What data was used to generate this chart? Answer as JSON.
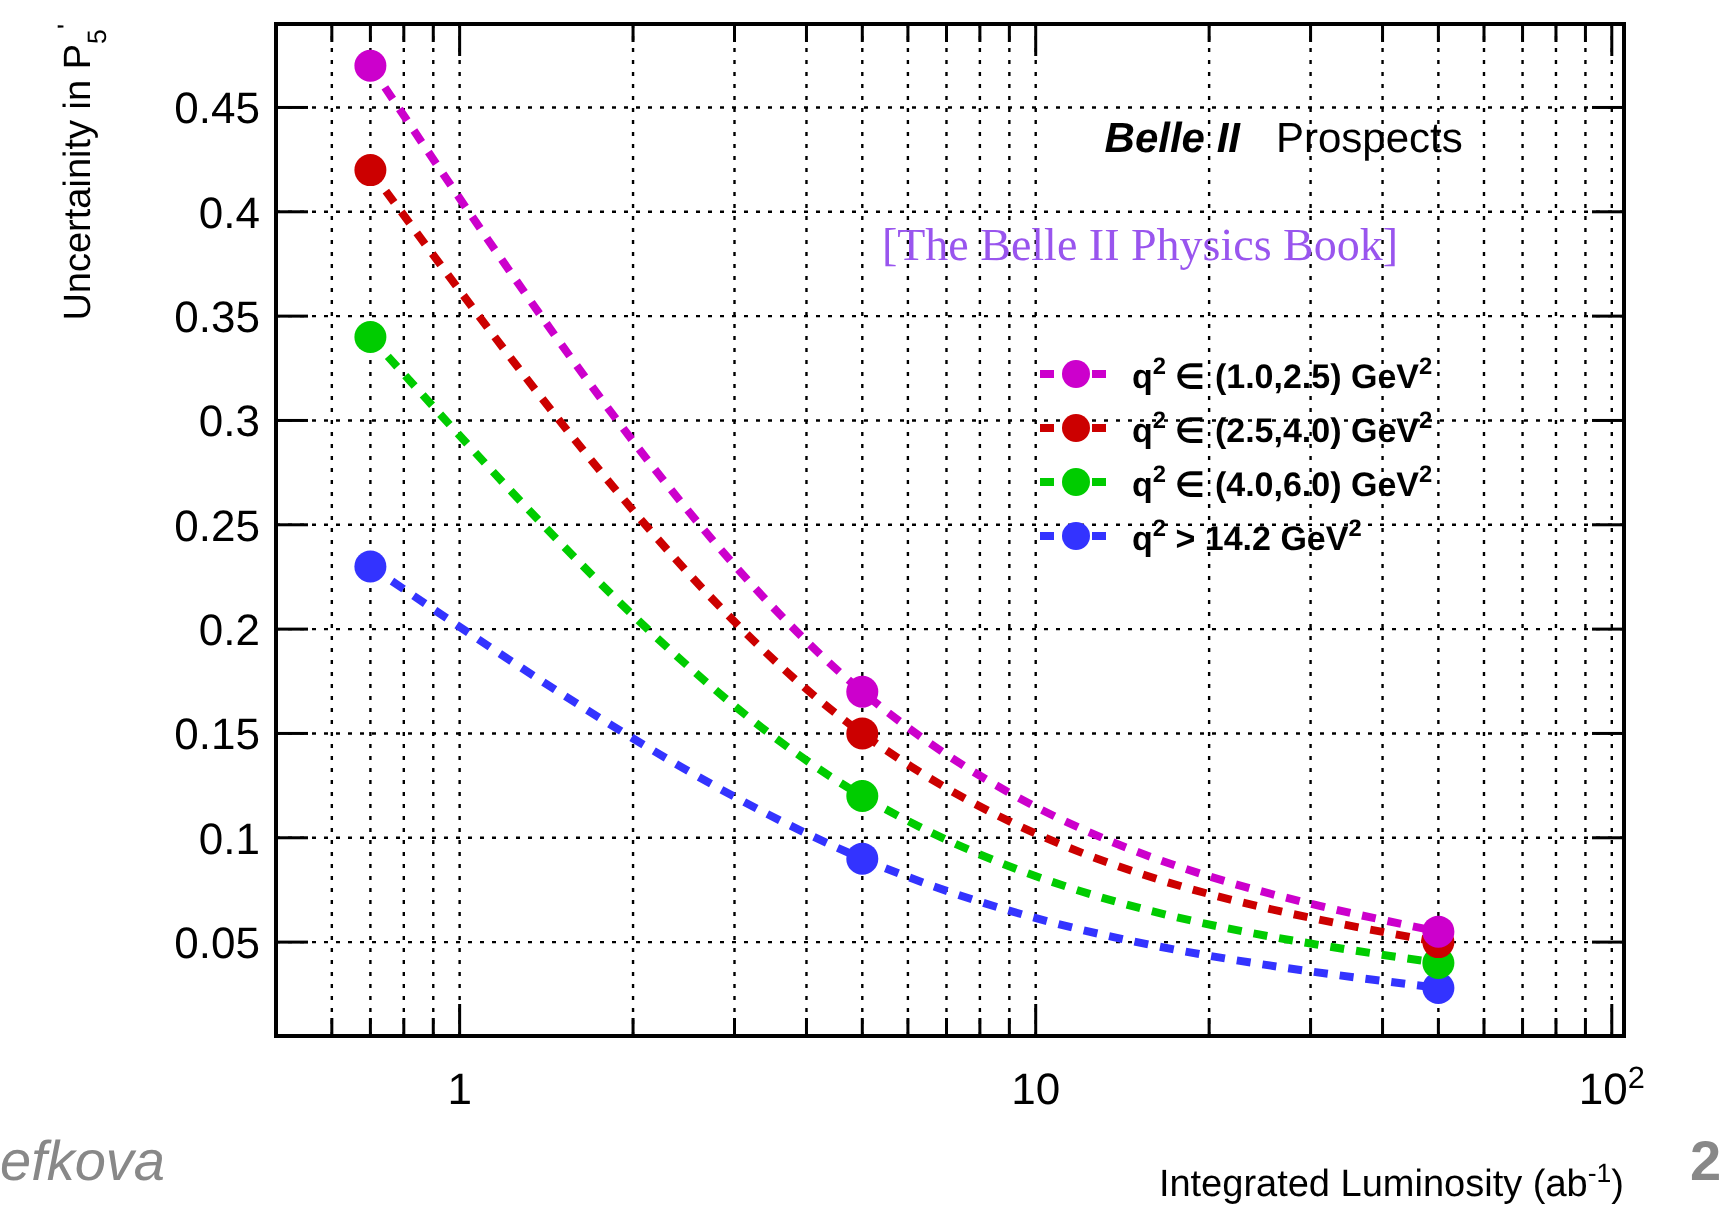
{
  "chart_data": {
    "type": "line",
    "xlabel": "Integrated Luminosity (ab$^{-1}$)",
    "ylabel": "Uncertainity in P$_{5}$$^{'}$",
    "x": [
      0.7,
      5,
      50
    ],
    "series": [
      {
        "name": "q$^{2}$ ∈ (1.0,2.5) GeV$^{2}$",
        "color": "#cc00cc",
        "values": [
          0.47,
          0.17,
          0.055
        ]
      },
      {
        "name": "q$^{2}$ ∈ (2.5,4.0) GeV$^{2}$",
        "color": "#cc0000",
        "values": [
          0.42,
          0.15,
          0.05
        ]
      },
      {
        "name": "q$^{2}$ ∈ (4.0,6.0) GeV$^{2}$",
        "color": "#00cc00",
        "values": [
          0.34,
          0.12,
          0.04
        ]
      },
      {
        "name": "q$^{2}$ > 14.2 GeV$^{2}$",
        "color": "#3333ff",
        "values": [
          0.23,
          0.09,
          0.028
        ]
      }
    ],
    "log": "x",
    "xlim": [
      0.48,
      105
    ],
    "xticks": [
      {
        "value": 0.6,
        "label": null
      },
      {
        "value": 0.7,
        "label": null
      },
      {
        "value": 0.8,
        "label": null
      },
      {
        "value": 0.9,
        "label": null
      },
      1,
      {
        "value": 2,
        "label": null
      },
      {
        "value": 3,
        "label": null
      },
      {
        "value": 4,
        "label": null
      },
      {
        "value": 5,
        "label": null
      },
      {
        "value": 6,
        "label": null
      },
      {
        "value": 7,
        "label": null
      },
      {
        "value": 8,
        "label": null
      },
      {
        "value": 9,
        "label": null
      },
      10,
      {
        "value": 20,
        "label": null
      },
      {
        "value": 30,
        "label": null
      },
      {
        "value": 40,
        "label": null
      },
      {
        "value": 50,
        "label": null
      },
      {
        "value": 60,
        "label": null
      },
      {
        "value": 70,
        "label": null
      },
      {
        "value": 80,
        "label": null
      },
      {
        "value": 90,
        "label": null
      },
      {
        "value": 100,
        "label": "10$^{2}$"
      }
    ],
    "ylim": [
      0.005,
      0.49
    ],
    "yticks": [
      0.05,
      0.1,
      0.15,
      0.2,
      0.25,
      0.3,
      0.35,
      0.4,
      0.45
    ],
    "grid": true,
    "legend": "top right",
    "marker": "circle",
    "line_style": "dashed",
    "annotations": [
      "Belle II",
      "Prospects",
      "[The Belle II Physics Book]",
      "efkova",
      "2"
    ]
  }
}
